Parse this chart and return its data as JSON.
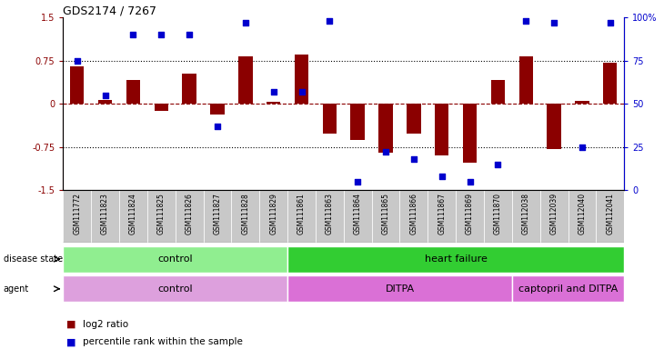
{
  "title": "GDS2174 / 7267",
  "samples": [
    "GSM111772",
    "GSM111823",
    "GSM111824",
    "GSM111825",
    "GSM111826",
    "GSM111827",
    "GSM111828",
    "GSM111829",
    "GSM111861",
    "GSM111863",
    "GSM111864",
    "GSM111865",
    "GSM111866",
    "GSM111867",
    "GSM111869",
    "GSM111870",
    "GSM112038",
    "GSM112039",
    "GSM112040",
    "GSM112041"
  ],
  "log2_ratio": [
    0.65,
    0.07,
    0.42,
    -0.12,
    0.52,
    -0.18,
    0.82,
    0.04,
    0.85,
    -0.52,
    -0.62,
    -0.85,
    -0.52,
    -0.9,
    -1.02,
    0.42,
    0.82,
    -0.78,
    0.05,
    0.72
  ],
  "percentile_rank": [
    75,
    55,
    90,
    90,
    90,
    37,
    97,
    57,
    57,
    98,
    5,
    22,
    18,
    8,
    5,
    15,
    98,
    97,
    25,
    97
  ],
  "ylim_left": [
    -1.5,
    1.5
  ],
  "ylim_right": [
    0,
    100
  ],
  "bar_color": "#8B0000",
  "dot_color": "#0000CD",
  "disease_state_groups": [
    {
      "label": "control",
      "start": 0,
      "end": 8,
      "color": "#90EE90"
    },
    {
      "label": "heart failure",
      "start": 8,
      "end": 20,
      "color": "#32CD32"
    }
  ],
  "agent_groups": [
    {
      "label": "control",
      "start": 0,
      "end": 8,
      "color": "#DDA0DD"
    },
    {
      "label": "DITPA",
      "start": 8,
      "end": 16,
      "color": "#DA70D6"
    },
    {
      "label": "captopril and DITPA",
      "start": 16,
      "end": 20,
      "color": "#DA70D6"
    }
  ],
  "background_color": "#ffffff"
}
